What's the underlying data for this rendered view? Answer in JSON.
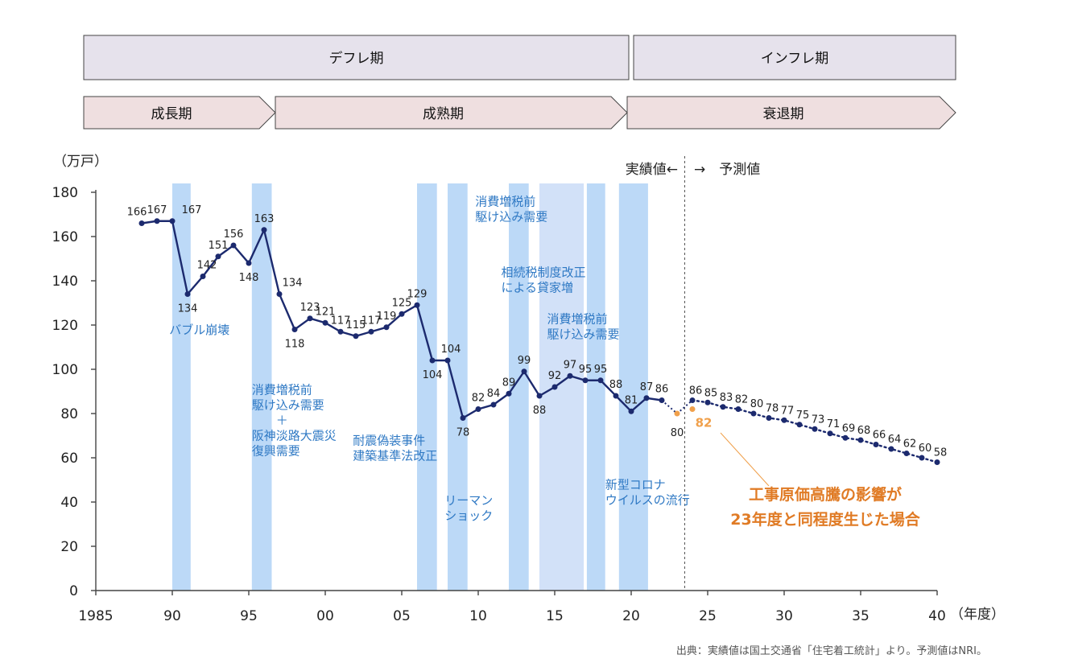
{
  "phases": [
    {
      "label": "デフレ期",
      "from": 1985,
      "to": 2020
    },
    {
      "label": "インフレ期",
      "from": 2020,
      "to": 2041
    }
  ],
  "stages": [
    {
      "label": "成長期",
      "from": 1985,
      "to": 1997
    },
    {
      "label": "成熟期",
      "from": 1997,
      "to": 2020
    },
    {
      "label": "衰退期",
      "from": 2020,
      "to": 2041
    }
  ],
  "chart_data": {
    "type": "line",
    "ylabel": "（万戸）",
    "xlabel": "（年度）",
    "ylim": [
      0,
      180
    ],
    "xlim": [
      1985,
      2040
    ],
    "yticks": [
      0,
      20,
      40,
      60,
      80,
      100,
      120,
      140,
      160,
      180
    ],
    "xticks": [
      {
        "v": 1985,
        "label": "1985"
      },
      {
        "v": 1990,
        "label": "90"
      },
      {
        "v": 1995,
        "label": "95"
      },
      {
        "v": 2000,
        "label": "00"
      },
      {
        "v": 2005,
        "label": "05"
      },
      {
        "v": 2010,
        "label": "10"
      },
      {
        "v": 2015,
        "label": "15"
      },
      {
        "v": 2020,
        "label": "20"
      },
      {
        "v": 2025,
        "label": "25"
      },
      {
        "v": 2030,
        "label": "30"
      },
      {
        "v": 2035,
        "label": "35"
      },
      {
        "v": 2040,
        "label": "40"
      }
    ],
    "grid": false,
    "actual": {
      "x": [
        1988,
        1989,
        1990,
        1991,
        1992,
        1993,
        1994,
        1995,
        1996,
        1997,
        1998,
        1999,
        2000,
        2001,
        2002,
        2003,
        2004,
        2005,
        2006,
        2007,
        2008,
        2009,
        2010,
        2011,
        2012,
        2013,
        2014,
        2015,
        2016,
        2017,
        2018,
        2019,
        2020,
        2021,
        2022
      ],
      "values": [
        166,
        167,
        167,
        134,
        142,
        151,
        156,
        148,
        163,
        134,
        118,
        123,
        121,
        117,
        115,
        117,
        119,
        125,
        129,
        104,
        104,
        78,
        82,
        84,
        89,
        99,
        88,
        92,
        97,
        95,
        95,
        88,
        81,
        87,
        86
      ],
      "labels": [
        "166",
        "167",
        "167",
        "134",
        "142",
        "151",
        "156",
        "148",
        "163",
        "134",
        "118",
        "123",
        "121",
        "117",
        "115",
        "117",
        "119",
        "125",
        "129",
        "104",
        "104",
        "78",
        "82",
        "84",
        "89",
        "99",
        "88",
        "92",
        "97",
        "95",
        "95",
        "88",
        "81",
        "87",
        "86"
      ]
    },
    "actual_2023": {
      "x": 2023,
      "value": 80,
      "label": "80"
    },
    "forecast": {
      "x": [
        2024,
        2025,
        2026,
        2027,
        2028,
        2029,
        2030,
        2031,
        2032,
        2033,
        2034,
        2035,
        2036,
        2037,
        2038,
        2039,
        2040
      ],
      "values": [
        86,
        85,
        83,
        82,
        80,
        78,
        77,
        75,
        73,
        71,
        69,
        68,
        66,
        64,
        62,
        60,
        58
      ],
      "labels": [
        "86",
        "85",
        "83",
        "82",
        "80",
        "78",
        "77",
        "75",
        "73",
        "71",
        "69",
        "68",
        "66",
        "64",
        "62",
        "60",
        "58"
      ]
    },
    "scenario": {
      "x": 2024,
      "value": 82,
      "label": "82"
    },
    "bands": [
      {
        "from": 1990,
        "to": 1991.2
      },
      {
        "from": 1995.2,
        "to": 1996.5
      },
      {
        "from": 2006,
        "to": 2007.3
      },
      {
        "from": 2008,
        "to": 2009.3
      },
      {
        "from": 2012,
        "to": 2013.3
      },
      {
        "from": 2014,
        "to": 2016.9,
        "light": true
      },
      {
        "from": 2017.1,
        "to": 2018.3
      },
      {
        "from": 2019.2,
        "to": 2021.1
      }
    ],
    "divider_x": 2023.5,
    "annotations": [
      {
        "lines": [
          "バブル崩壊"
        ],
        "x": 1989.8,
        "y": 116
      },
      {
        "lines": [
          "消費増税前",
          "駆け込み需要",
          "＋",
          "阪神淡路大震災",
          "復興需要"
        ],
        "x": 1995.2,
        "y": 89,
        "center_line": 2
      },
      {
        "lines": [
          "耐震偽装事件",
          "建築基準法改正"
        ],
        "x": 2001.8,
        "y": 66
      },
      {
        "lines": [
          "リーマン",
          "ショック"
        ],
        "x": 2007.8,
        "y": 39
      },
      {
        "lines": [
          "消費増税前",
          "駆け込み需要"
        ],
        "x": 2009.8,
        "y": 174
      },
      {
        "lines": [
          "相続税制度改正",
          "による貸家増"
        ],
        "x": 2011.5,
        "y": 142
      },
      {
        "lines": [
          "消費増税前",
          "駆け込み需要"
        ],
        "x": 2014.5,
        "y": 121
      },
      {
        "lines": [
          "新型コロナ",
          "ウイルスの流行"
        ],
        "x": 2018.3,
        "y": 46
      }
    ],
    "actual_label": "実績値←",
    "forecast_label": "→　予測値",
    "scenario_note": [
      "工事原価高騰の影響が",
      "23年度と同程度生じた場合"
    ]
  },
  "colors": {
    "line": "#1c2a6e",
    "scenario": "#f0a04b",
    "annotation": "#2f79c4",
    "scenario_note": "#e07b25"
  },
  "source": "出典：実績値は国土交通省「住宅着工統計」より。予測値はNRI。"
}
